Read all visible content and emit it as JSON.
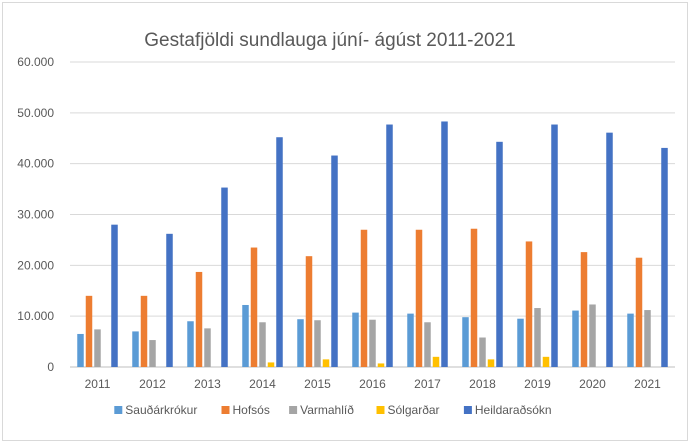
{
  "chart_data": {
    "type": "bar",
    "title": "Gestafjöldi sundlauga júní- ágúst 2011-2021",
    "xlabel": "",
    "ylabel": "",
    "ylim": [
      0,
      60000
    ],
    "yticks": [
      0,
      10000,
      20000,
      30000,
      40000,
      50000,
      60000
    ],
    "ytick_labels": [
      "0",
      "10.000",
      "20.000",
      "30.000",
      "40.000",
      "50.000",
      "60.000"
    ],
    "grid": true,
    "legend_position": "bottom",
    "categories": [
      "2011",
      "2012",
      "2013",
      "2014",
      "2015",
      "2016",
      "2017",
      "2018",
      "2019",
      "2020",
      "2021"
    ],
    "series": [
      {
        "name": "Sauðárkrókur",
        "color": "#5b9bd5",
        "values": [
          6500,
          7000,
          9000,
          12200,
          9400,
          10700,
          10500,
          9800,
          9500,
          11100,
          10500
        ]
      },
      {
        "name": "Hofsós",
        "color": "#ed7d31",
        "values": [
          14000,
          14000,
          18700,
          23500,
          21800,
          27000,
          27000,
          27200,
          24700,
          22600,
          21500
        ]
      },
      {
        "name": "Varmahlíð",
        "color": "#a5a5a5",
        "values": [
          7400,
          5300,
          7600,
          8800,
          9200,
          9300,
          8800,
          5800,
          11600,
          12300,
          11200
        ]
      },
      {
        "name": "Sólgarðar",
        "color": "#ffc000",
        "values": [
          0,
          0,
          0,
          900,
          1500,
          700,
          2000,
          1500,
          2000,
          0,
          0
        ]
      },
      {
        "name": "Heildaraðsókn",
        "color": "#4472c4",
        "values": [
          28000,
          26200,
          35300,
          45200,
          41600,
          47700,
          48300,
          44300,
          47700,
          46100,
          43100
        ]
      }
    ]
  }
}
